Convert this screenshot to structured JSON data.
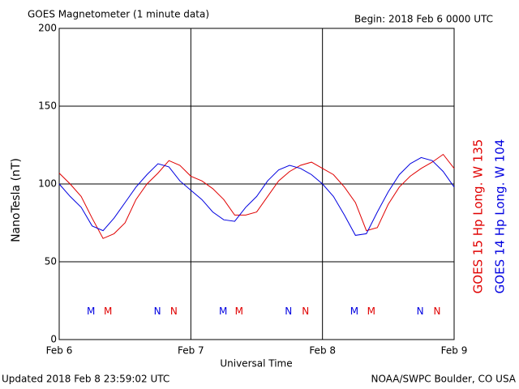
{
  "chart_data": {
    "type": "line",
    "title": "GOES Magnetometer (1 minute data)",
    "subtitle": "Begin:  2018 Feb 6 0000 UTC",
    "ylabel": "NanoTesla (nT)",
    "xlabel": "Universal Time",
    "footer_left": "Updated 2018 Feb  8 23:59:02 UTC",
    "footer_right": "NOAA/SWPC Boulder, CO USA",
    "xlim": [
      0,
      72
    ],
    "xticks": [
      {
        "value": 0,
        "label": "Feb 6"
      },
      {
        "value": 24,
        "label": "Feb 7"
      },
      {
        "value": 48,
        "label": "Feb 8"
      },
      {
        "value": 72,
        "label": "Feb 9"
      }
    ],
    "ylim": [
      0,
      200
    ],
    "yticks": [
      0,
      50,
      100,
      150,
      200
    ],
    "grid": true,
    "x": [
      0,
      2,
      4,
      6,
      8,
      10,
      12,
      14,
      16,
      18,
      20,
      22,
      24,
      26,
      28,
      30,
      32,
      34,
      36,
      38,
      40,
      42,
      44,
      46,
      48,
      50,
      52,
      54,
      56,
      58,
      60,
      62,
      64,
      66,
      68,
      70,
      72
    ],
    "series": [
      {
        "name": "GOES 15 Hp  Long. W 135",
        "color": "#e00000",
        "values": [
          107,
          100,
          92,
          78,
          65,
          68,
          75,
          90,
          100,
          107,
          115,
          112,
          105,
          102,
          97,
          90,
          80,
          80,
          82,
          92,
          102,
          108,
          112,
          114,
          110,
          106,
          98,
          88,
          70,
          72,
          87,
          98,
          105,
          110,
          114,
          119,
          110
        ]
      },
      {
        "name": "GOES 14 Hp  Long. W 104",
        "color": "#0000e0",
        "values": [
          100,
          92,
          85,
          73,
          70,
          78,
          88,
          98,
          106,
          113,
          111,
          102,
          96,
          90,
          82,
          77,
          76,
          85,
          92,
          102,
          109,
          112,
          110,
          106,
          100,
          92,
          80,
          67,
          68,
          82,
          95,
          106,
          113,
          117,
          115,
          108,
          98
        ]
      }
    ],
    "annotations": [
      {
        "label": "M",
        "x": 5.8,
        "y": 18,
        "color": "#0000e0"
      },
      {
        "label": "M",
        "x": 8.9,
        "y": 18,
        "color": "#e00000"
      },
      {
        "label": "N",
        "x": 17.9,
        "y": 18,
        "color": "#0000e0"
      },
      {
        "label": "N",
        "x": 20.9,
        "y": 18,
        "color": "#e00000"
      },
      {
        "label": "M",
        "x": 29.9,
        "y": 18,
        "color": "#0000e0"
      },
      {
        "label": "M",
        "x": 32.8,
        "y": 18,
        "color": "#e00000"
      },
      {
        "label": "N",
        "x": 41.8,
        "y": 18,
        "color": "#0000e0"
      },
      {
        "label": "N",
        "x": 44.9,
        "y": 18,
        "color": "#e00000"
      },
      {
        "label": "M",
        "x": 53.8,
        "y": 18,
        "color": "#0000e0"
      },
      {
        "label": "M",
        "x": 56.9,
        "y": 18,
        "color": "#e00000"
      },
      {
        "label": "N",
        "x": 65.8,
        "y": 18,
        "color": "#0000e0"
      },
      {
        "label": "N",
        "x": 68.9,
        "y": 18,
        "color": "#e00000"
      }
    ]
  }
}
